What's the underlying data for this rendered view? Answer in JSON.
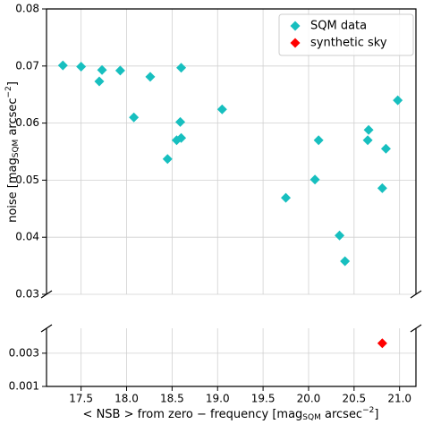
{
  "chart_data": {
    "type": "scatter",
    "xlabel": [
      "< NSB >  from zero − frequency [mag",
      "SQM",
      " arcsec",
      "−2",
      "]"
    ],
    "ylabel": [
      "noise [mag",
      "SQM",
      " arcsec",
      "−2",
      "]"
    ],
    "xlim": [
      17.12,
      21.18
    ],
    "xticks": [
      17.5,
      {
        "value": 18,
        "label": "18.0"
      },
      18.5,
      {
        "value": 19,
        "label": "19.0"
      },
      19.5,
      {
        "value": 20,
        "label": "20.0"
      },
      20.5,
      {
        "value": 21,
        "label": "21.0"
      }
    ],
    "ylim": [
      0.03,
      0.08
    ],
    "yticks": [
      0.03,
      0.04,
      0.05,
      0.06,
      0.07,
      0.08
    ],
    "y2lim": [
      0.001,
      0.0045
    ],
    "y2ticks": [
      0.001,
      0.003
    ],
    "grid": true,
    "legend": "upper right",
    "series": [
      {
        "name": "SQM data",
        "color": "#17bfbf",
        "x": [
          17.3,
          17.5,
          17.7,
          17.73,
          17.93,
          18.26,
          18.6,
          18.08,
          18.59,
          18.55,
          18.6,
          18.45,
          19.05,
          19.75,
          20.07,
          20.11,
          20.34,
          20.4,
          20.66,
          20.65,
          20.85,
          20.81,
          20.98
        ],
        "values": [
          0.0701,
          0.0699,
          0.0673,
          0.0693,
          0.0692,
          0.0681,
          0.0697,
          0.061,
          0.0602,
          0.057,
          0.0574,
          0.0537,
          0.0624,
          0.0469,
          0.0501,
          0.057,
          0.0403,
          0.0358,
          0.0588,
          0.057,
          0.0555,
          0.0486,
          0.064
        ]
      },
      {
        "name": "synthetic sky",
        "color": "#ff0000",
        "axis": "y2",
        "x": [
          20.81
        ],
        "values": [
          0.0036
        ]
      }
    ]
  }
}
